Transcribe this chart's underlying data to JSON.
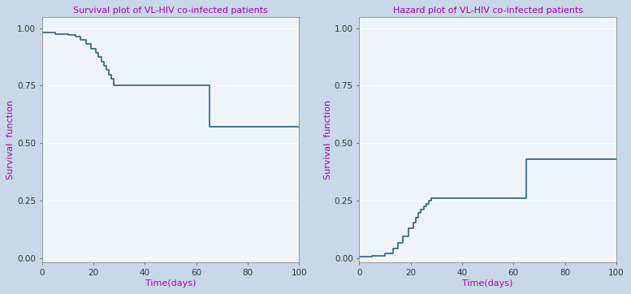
{
  "left_title": "Survival plot of VL-HIV co-infected patients",
  "right_title": "Hazard plot of VL-HIV co-infected patients",
  "xlabel": "Time(days)",
  "ylabel_left": "Survival  function",
  "ylabel_right": "Survival  function",
  "title_color": "#aa00aa",
  "ylabel_color": "#aa00aa",
  "xlabel_color": "#aa00aa",
  "line_color": "#2d5f80",
  "outer_bg_color": "#c8d8e8",
  "plot_bg_color": "#eef4fa",
  "grid_color": "#ffffff",
  "spine_color": "#888888",
  "tick_color": "#333333",
  "xlim": [
    0,
    100
  ],
  "ylim": [
    -0.02,
    1.05
  ],
  "xticks": [
    0,
    20,
    40,
    60,
    80,
    100
  ],
  "yticks": [
    0.0,
    0.25,
    0.5,
    0.75,
    1.0
  ],
  "surv_times": [
    0,
    5,
    10,
    13,
    15,
    17,
    19,
    21,
    22,
    23,
    24,
    25,
    26,
    27,
    28,
    63,
    65,
    90
  ],
  "surv_probs": [
    0.981,
    0.975,
    0.969,
    0.962,
    0.95,
    0.931,
    0.912,
    0.893,
    0.874,
    0.855,
    0.836,
    0.817,
    0.798,
    0.779,
    0.75,
    0.75,
    0.572,
    0.572
  ],
  "haz_times": [
    0,
    5,
    10,
    13,
    15,
    17,
    19,
    21,
    22,
    23,
    24,
    25,
    26,
    27,
    28,
    63,
    65,
    90
  ],
  "haz_vals": [
    0.004,
    0.008,
    0.02,
    0.04,
    0.065,
    0.095,
    0.128,
    0.155,
    0.175,
    0.195,
    0.21,
    0.223,
    0.235,
    0.248,
    0.26,
    0.26,
    0.43,
    0.43
  ],
  "title_fontsize": 8.0,
  "label_fontsize": 8.0,
  "tick_fontsize": 7.5,
  "linewidth": 1.2
}
